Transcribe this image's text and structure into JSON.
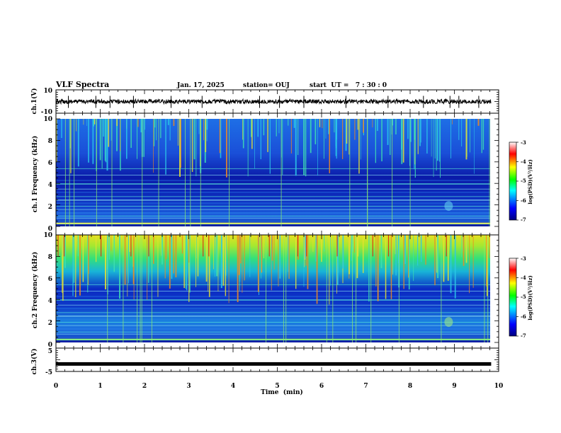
{
  "header": {
    "title": "VLF Spectra",
    "date": "Jan. 17, 2025",
    "station": "station= OUJ",
    "start_ut": "start  UT =   7 : 30 : 0"
  },
  "chart_data": [
    {
      "type": "line",
      "id": "ch1-waveform",
      "ylabel": "ch.1(V)",
      "ylim": [
        -10,
        10
      ],
      "yticks": [
        "10",
        "-10"
      ],
      "xlim": [
        0,
        10
      ],
      "x_end": 9.83,
      "level": 0,
      "spikes_x": [
        0.28,
        0.9,
        1.22,
        1.75,
        2.6,
        3.3,
        4.6,
        5.05,
        5.6,
        6.55,
        7.5,
        8.3,
        8.9,
        9.1,
        9.55
      ]
    },
    {
      "type": "heatmap",
      "id": "ch1-spectrogram",
      "ylabel": "ch.1 Frequency (kHz)",
      "ylim": [
        0,
        10
      ],
      "yticks": [
        "0",
        "2",
        "4",
        "6",
        "8",
        "10"
      ],
      "xlim": [
        0,
        10
      ],
      "x_end": 9.83
    },
    {
      "type": "heatmap",
      "id": "ch2-spectrogram",
      "ylabel": "ch.2 Frequency (kHz)",
      "ylim": [
        0,
        10
      ],
      "yticks": [
        "0",
        "2",
        "4",
        "6",
        "8",
        "10"
      ],
      "xlim": [
        0,
        10
      ],
      "x_end": 9.83
    },
    {
      "type": "line",
      "id": "ch3-waveform",
      "ylabel": "ch.3(V)",
      "ylim": [
        -5,
        5
      ],
      "yticks": [
        "5",
        "-5"
      ],
      "xlim": [
        0,
        10
      ],
      "x_end": 9.83,
      "level": -1.8
    }
  ],
  "xaxis": {
    "label": "Time  (min)",
    "ticks": [
      "0",
      "1",
      "2",
      "3",
      "4",
      "5",
      "6",
      "7",
      "8",
      "9",
      "10"
    ]
  },
  "colorbar": {
    "label": "log(PSD)(V²/Hz)",
    "range": [
      -7,
      -3
    ],
    "ticks": [
      "-3",
      "-4",
      "-5",
      "-6",
      "-7"
    ],
    "colors": [
      "#000080",
      "#0000ff",
      "#00ffff",
      "#00ff00",
      "#ffff00",
      "#ff0000",
      "#ffffff"
    ]
  }
}
